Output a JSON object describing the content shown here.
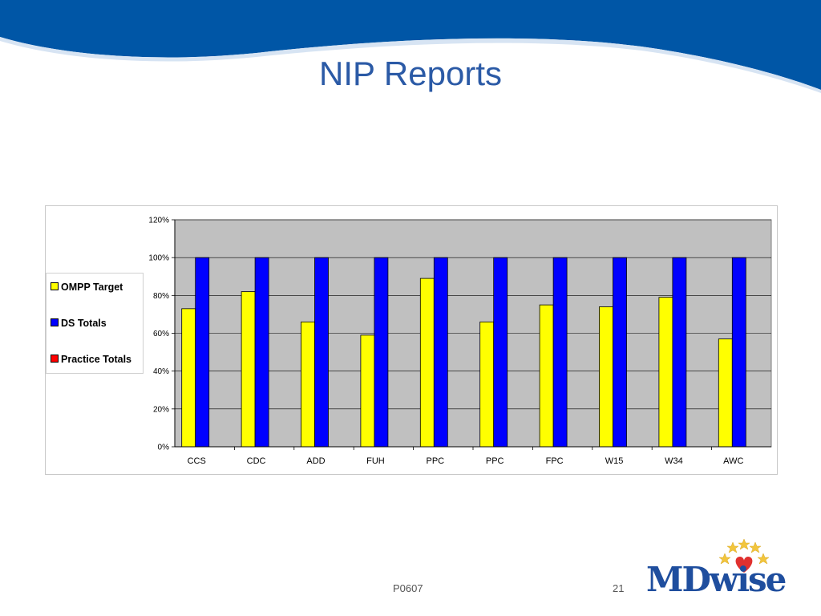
{
  "slide": {
    "title": "NIP Reports",
    "footer_code": "P0607",
    "page_number": "21"
  },
  "logo": {
    "text": "MDwise"
  },
  "colors": {
    "brand_blue": "#0056a6",
    "title_blue": "#2b5aa6",
    "plot_area": "#c0c0c0",
    "ompp_target": "#ffff00",
    "ds_totals": "#0000ff",
    "practice_totals": "#ff0000"
  },
  "chart_data": {
    "type": "bar",
    "categories": [
      "CCS",
      "CDC",
      "ADD",
      "FUH",
      "PPC",
      "PPC",
      "FPC",
      "W15",
      "W34",
      "AWC"
    ],
    "series": [
      {
        "name": "OMPP Target",
        "values": [
          0.73,
          0.82,
          0.66,
          0.59,
          0.89,
          0.66,
          0.75,
          0.74,
          0.79,
          0.57
        ]
      },
      {
        "name": "DS Totals",
        "values": [
          1.0,
          1.0,
          1.0,
          1.0,
          1.0,
          1.0,
          1.0,
          1.0,
          1.0,
          1.0
        ]
      },
      {
        "name": "Practice Totals",
        "values": [
          0,
          0,
          0,
          0,
          0,
          0,
          0,
          0,
          0,
          0
        ]
      }
    ],
    "y_ticks": [
      "0%",
      "20%",
      "40%",
      "60%",
      "80%",
      "100%",
      "120%"
    ],
    "ylim": [
      0,
      1.2
    ],
    "y_format": "percent",
    "grid": true,
    "legend_position": "left"
  }
}
